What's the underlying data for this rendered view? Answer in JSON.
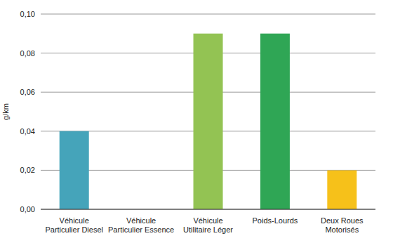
{
  "chart_data": {
    "type": "bar",
    "y_label": "g/km",
    "categories": [
      "Véhicule\nParticulier Diesel",
      "Véhicule\nParticulier Essence",
      "Véhicule\nUtilitaire Léger",
      "Poids-Lourds",
      "Deux Roues\nMotorisés"
    ],
    "values": [
      0.04,
      0,
      0.09,
      0.09,
      0.02
    ],
    "colors": [
      "#45a4ba",
      "#3d7ebf",
      "#93c353",
      "#2fa655",
      "#f6c11a"
    ],
    "ylim": [
      0,
      0.1
    ],
    "yticks": [
      {
        "value": 0,
        "label": "0,00"
      },
      {
        "value": 0.02,
        "label": "0,02"
      },
      {
        "value": 0.04,
        "label": "0,04"
      },
      {
        "value": 0.06,
        "label": "0,06"
      },
      {
        "value": 0.08,
        "label": "0,08"
      },
      {
        "value": 0.1,
        "label": "0,10"
      }
    ],
    "grid": true
  }
}
